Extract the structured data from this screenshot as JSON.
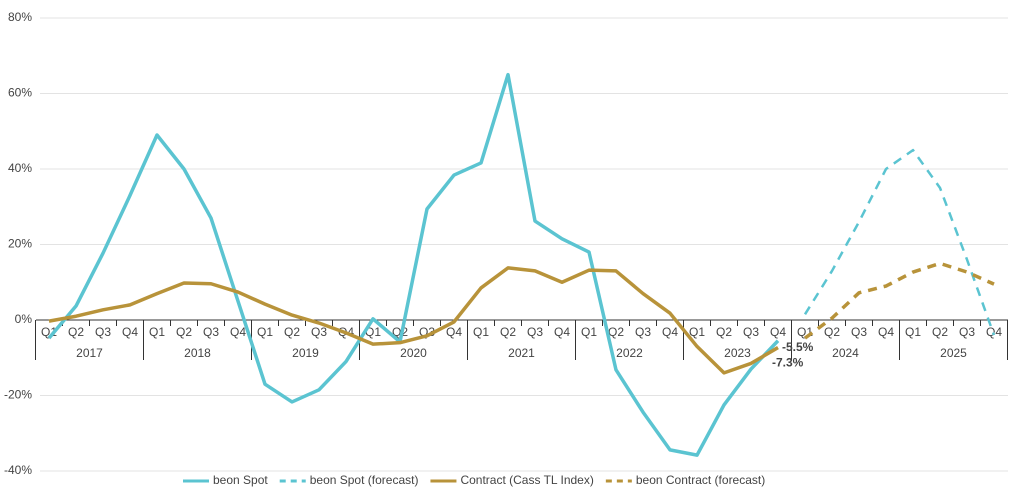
{
  "chart_data": {
    "type": "line",
    "categories": [
      "Q1",
      "Q2",
      "Q3",
      "Q4",
      "Q1",
      "Q2",
      "Q3",
      "Q4",
      "Q1",
      "Q2",
      "Q3",
      "Q4",
      "Q1",
      "Q2",
      "Q3",
      "Q4",
      "Q1",
      "Q2",
      "Q3",
      "Q4",
      "Q1",
      "Q2",
      "Q3",
      "Q4",
      "Q1",
      "Q2",
      "Q3",
      "Q4",
      "Q1",
      "Q2",
      "Q3",
      "Q4",
      "Q1",
      "Q2",
      "Q3",
      "Q4"
    ],
    "groups": [
      "2017",
      "2018",
      "2019",
      "2020",
      "2021",
      "2022",
      "2023",
      "2024",
      "2025"
    ],
    "ylim": [
      -40,
      80
    ],
    "yticks": [
      {
        "value": -40,
        "label": "-40%"
      },
      {
        "value": -20,
        "label": "-20%"
      },
      {
        "value": 0,
        "label": "0%"
      },
      {
        "value": 20,
        "label": "20%"
      },
      {
        "value": 40,
        "label": "40%"
      },
      {
        "value": 60,
        "label": "60%"
      },
      {
        "value": 80,
        "label": "80%"
      }
    ],
    "grid": true,
    "legend": "bottom",
    "series": [
      {
        "name": "beon Spot",
        "color": "#5bc4d1",
        "dashed": false,
        "values": [
          -4.8,
          3.7,
          17.7,
          33,
          49,
          40,
          27,
          5,
          -17,
          -21.7,
          -18.5,
          -11,
          0.3,
          -5.8,
          29.4,
          38.4,
          41.6,
          65,
          26.2,
          21.5,
          18,
          -13.2,
          -24.4,
          -34.4,
          -35.8,
          -22.5,
          -13,
          -5.5,
          null,
          null,
          null,
          null,
          null,
          null,
          null,
          null
        ],
        "value_labels": [
          null,
          null,
          null,
          null,
          null,
          null,
          null,
          null,
          null,
          null,
          null,
          null,
          null,
          null,
          null,
          null,
          null,
          null,
          null,
          null,
          null,
          null,
          null,
          null,
          null,
          null,
          null,
          "-5.5%",
          null,
          null,
          null,
          null,
          null,
          null,
          null,
          null
        ]
      },
      {
        "name": "beon Spot (forecast)",
        "color": "#5bc4d1",
        "dashed": true,
        "values": [
          null,
          null,
          null,
          null,
          null,
          null,
          null,
          null,
          null,
          null,
          null,
          null,
          null,
          null,
          null,
          null,
          null,
          null,
          null,
          null,
          null,
          null,
          null,
          null,
          null,
          null,
          null,
          null,
          1.5,
          13,
          26,
          40,
          45,
          35,
          16,
          -4
        ]
      },
      {
        "name": "Contract (Cass TL Index)",
        "color": "#b8933a",
        "dashed": false,
        "values": [
          -0.3,
          1,
          2.7,
          4,
          7,
          9.8,
          9.6,
          7.4,
          4.2,
          1.3,
          -0.8,
          -3.4,
          -6.4,
          -6,
          -4.2,
          -0.5,
          8.5,
          13.8,
          13,
          10,
          13.2,
          13,
          7,
          1.8,
          -7,
          -14,
          -11.5,
          -7.3,
          null,
          null,
          null,
          null,
          null,
          null,
          null,
          null
        ],
        "value_labels": [
          null,
          null,
          null,
          null,
          null,
          null,
          null,
          null,
          null,
          null,
          null,
          null,
          null,
          null,
          null,
          null,
          null,
          null,
          null,
          null,
          null,
          null,
          null,
          null,
          null,
          null,
          null,
          "-7.3%",
          null,
          null,
          null,
          null,
          null,
          null,
          null,
          null
        ]
      },
      {
        "name": "beon Contract (forecast)",
        "color": "#b8933a",
        "dashed": true,
        "values": [
          null,
          null,
          null,
          null,
          null,
          null,
          null,
          null,
          null,
          null,
          null,
          null,
          null,
          null,
          null,
          null,
          null,
          null,
          null,
          null,
          null,
          null,
          null,
          null,
          null,
          null,
          null,
          null,
          -4.8,
          0.5,
          7.2,
          9,
          12.7,
          15,
          12.7,
          9.5
        ]
      }
    ]
  }
}
